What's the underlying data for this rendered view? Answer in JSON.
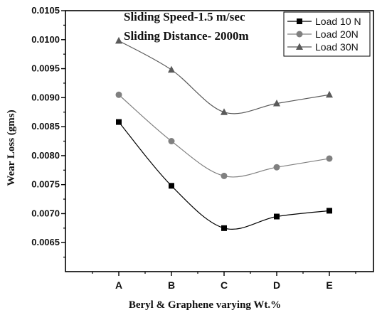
{
  "chart_data": {
    "type": "line",
    "categories": [
      "A",
      "B",
      "C",
      "D",
      "E"
    ],
    "series": [
      {
        "name": "Load 10 N",
        "marker": "square",
        "color": "#000000",
        "values": [
          0.00858,
          0.00748,
          0.00675,
          0.00695,
          0.00705
        ]
      },
      {
        "name": "Load 20N",
        "marker": "circle",
        "color": "#808080",
        "values": [
          0.00905,
          0.00825,
          0.00765,
          0.0078,
          0.00795
        ]
      },
      {
        "name": "Load 30N",
        "marker": "triangle",
        "color": "#5a5a5a",
        "values": [
          0.00998,
          0.00948,
          0.00875,
          0.0089,
          0.00905
        ]
      }
    ],
    "xlabel": "Beryl & Graphene varying Wt.%",
    "ylabel": "Wear Loss (gms)",
    "ylim": [
      0.006,
      0.0105
    ],
    "yticks": [
      "0.0065",
      "0.0070",
      "0.0075",
      "0.0080",
      "0.0085",
      "0.0090",
      "0.0095",
      "0.0100",
      "0.0105"
    ],
    "annotations": [
      "Sliding Speed-1.5 m/sec",
      "Sliding Distance- 2000m"
    ],
    "legend_position": "top-right",
    "grid": false
  }
}
